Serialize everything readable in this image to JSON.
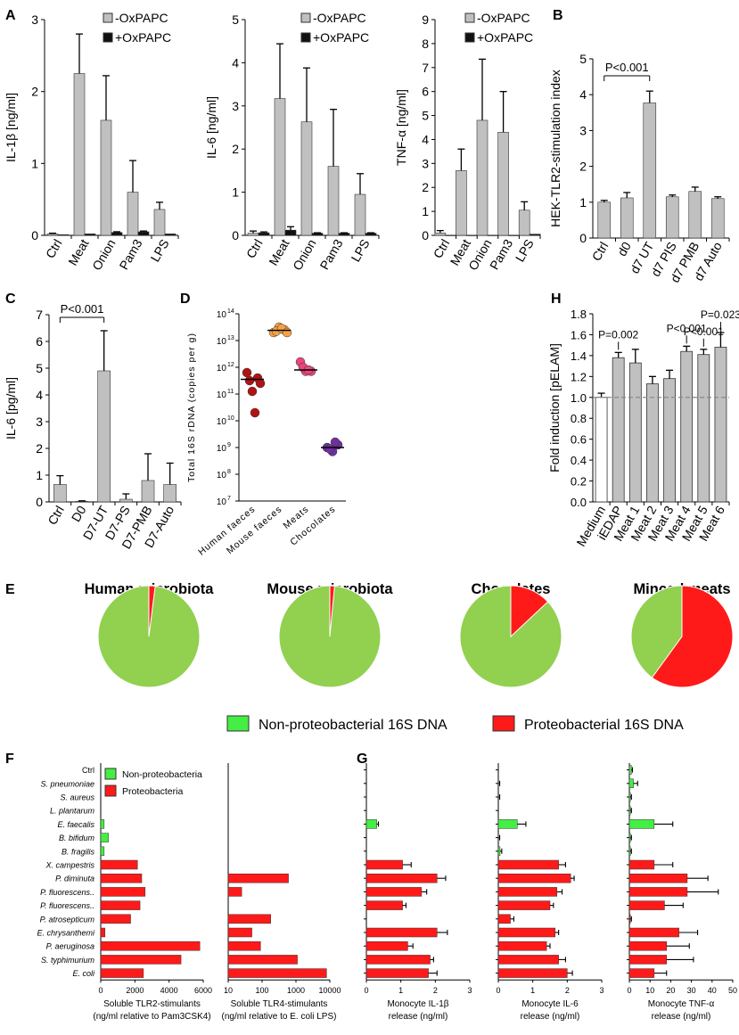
{
  "figure": {
    "panel_letters": [
      "A",
      "B",
      "C",
      "D",
      "E",
      "F",
      "G",
      "H"
    ]
  },
  "colors": {
    "gray_bar": "#c0c0c0",
    "black_bar": "#111111",
    "white_bar": "#ffffff",
    "green": "#92d050",
    "bright_green": "#44ee44",
    "red": "#ff1a1a",
    "orange": "#f5a142",
    "dark_red": "#b11212",
    "pink": "#e8467c",
    "purple": "#7030a0"
  },
  "chart_data": [
    {
      "id": "A1",
      "panel": "A",
      "type": "bar",
      "categories": [
        "Ctrl",
        "Meat",
        "Onion",
        "Pam3",
        "LPS"
      ],
      "series": [
        {
          "name": "-OxPAPC",
          "values": [
            0.02,
            2.25,
            1.6,
            0.6,
            0.36
          ],
          "errors": [
            0.01,
            0.55,
            0.62,
            0.44,
            0.1
          ]
        },
        {
          "name": "+OxPAPC",
          "values": [
            0.01,
            0.02,
            0.04,
            0.05,
            0.02
          ],
          "errors": [
            0.0,
            0.0,
            0.01,
            0.01,
            0.0
          ]
        }
      ],
      "ylabel": "IL-1β [ng/ml]",
      "ylim": [
        0,
        3
      ],
      "yticks": [
        0,
        1,
        2,
        3
      ]
    },
    {
      "id": "A2",
      "panel": "A",
      "type": "bar",
      "categories": [
        "Ctrl",
        "Meat",
        "Onion",
        "Pam3",
        "LPS"
      ],
      "series": [
        {
          "name": "-OxPAPC",
          "values": [
            0.05,
            3.17,
            2.63,
            1.6,
            0.95
          ],
          "errors": [
            0.05,
            1.27,
            1.25,
            1.32,
            0.48
          ]
        },
        {
          "name": "+OxPAPC",
          "values": [
            0.06,
            0.12,
            0.05,
            0.05,
            0.05
          ],
          "errors": [
            0.02,
            0.08,
            0.01,
            0.01,
            0.01
          ]
        }
      ],
      "ylabel": "IL-6 [ng/ml]",
      "ylim": [
        0,
        5
      ],
      "yticks": [
        0,
        1,
        2,
        3,
        4,
        5
      ]
    },
    {
      "id": "A3",
      "panel": "A",
      "type": "bar",
      "categories": [
        "Ctrl",
        "Meat",
        "Onion",
        "Pam3",
        "LPS"
      ],
      "series": [
        {
          "name": "-OxPAPC",
          "values": [
            0.1,
            2.7,
            4.8,
            4.3,
            1.05
          ],
          "errors": [
            0.1,
            0.9,
            2.55,
            1.7,
            0.35
          ]
        },
        {
          "name": "+OxPAPC",
          "values": [
            0.0,
            0.0,
            0.0,
            0.0,
            0.05
          ],
          "errors": [
            0,
            0,
            0,
            0,
            0
          ]
        }
      ],
      "ylabel": "TNF-α [ng/ml]",
      "ylim": [
        0,
        9
      ],
      "yticks": [
        0,
        1,
        2,
        3,
        4,
        5,
        6,
        7,
        8,
        9
      ]
    },
    {
      "id": "B",
      "panel": "B",
      "type": "bar",
      "categories": [
        "Ctrl",
        "d0",
        "d7 UT",
        "d7 PIS",
        "d7 PMB",
        "d7 Auto"
      ],
      "values": [
        1.0,
        1.12,
        3.77,
        1.15,
        1.3,
        1.1
      ],
      "errors": [
        0.05,
        0.15,
        0.33,
        0.05,
        0.12,
        0.05
      ],
      "ylabel": "HEK-TLR2-stimulation index",
      "ylim": [
        0,
        5
      ],
      "yticks": [
        0,
        1,
        2,
        3,
        4,
        5
      ],
      "annotation": "P<0.001"
    },
    {
      "id": "C",
      "panel": "C",
      "type": "bar",
      "categories": [
        "Ctrl",
        "D0",
        "D7-UT",
        "D7-PS",
        "D7-PMB",
        "D7-Auto"
      ],
      "values": [
        0.65,
        0.02,
        4.9,
        0.1,
        0.8,
        0.65
      ],
      "errors": [
        0.33,
        0.02,
        1.5,
        0.2,
        1.0,
        0.8
      ],
      "ylabel": "IL-6 [pg/ml]",
      "ylim": [
        0,
        7
      ],
      "yticks": [
        0,
        1,
        2,
        3,
        4,
        5,
        6,
        7
      ],
      "annotation": "P<0.001"
    },
    {
      "id": "D",
      "panel": "D",
      "type": "scatter",
      "categories": [
        "Human faeces",
        "Mouse faeces",
        "Meats",
        "Chocolates"
      ],
      "points": [
        [
          11.8,
          11.1,
          11.6,
          11.5,
          10.3,
          11.4
        ],
        [
          13.3,
          13.5,
          13.4,
          13.35,
          13.45,
          13.3
        ],
        [
          12.2,
          11.85,
          11.85,
          12.0,
          11.9
        ],
        [
          9.0,
          8.85,
          9.1,
          8.95,
          9.2
        ]
      ],
      "medians": [
        11.55,
        13.38,
        11.9,
        9.0
      ],
      "ylabel": "Total 16S rDNA (copies per g)",
      "ylim_log10": [
        7,
        14
      ],
      "yticks": [
        "10",
        "10",
        "10",
        "10",
        "10",
        "10",
        "10",
        "10"
      ],
      "yexps": [
        "7",
        "8",
        "9",
        "10",
        "11",
        "12",
        "13",
        "14"
      ]
    },
    {
      "id": "H",
      "panel": "H",
      "type": "bar",
      "categories": [
        "Medium",
        "iEDAP",
        "Meat 1",
        "Meat 2",
        "Meat 3",
        "Meat 4",
        "Meat 5",
        "Meat 6"
      ],
      "values": [
        1.0,
        1.38,
        1.33,
        1.13,
        1.18,
        1.44,
        1.41,
        1.48
      ],
      "errors": [
        0.04,
        0.05,
        0.13,
        0.07,
        0.08,
        0.05,
        0.05,
        0.14
      ],
      "ylabel": "Fold induction [pELAM]",
      "ylim": [
        0,
        1.8
      ],
      "yticks": [
        "0.0",
        "0.2",
        "0.4",
        "0.6",
        "0.8",
        "1.0",
        "1.2",
        "1.4",
        "1.6",
        "1.8"
      ],
      "reference_line": 1.0,
      "annotations": [
        {
          "category": "iEDAP",
          "text": "P=0.002"
        },
        {
          "category": "Meat 4",
          "text": "P<0.001"
        },
        {
          "category": "Meat 5",
          "text": "P<0.001"
        },
        {
          "category": "Meat 6",
          "text": "P=0.023"
        }
      ]
    },
    {
      "id": "E",
      "panel": "E",
      "type": "pie",
      "pies": [
        {
          "title": "Human microbiota",
          "proteobacterial_fraction": 0.02
        },
        {
          "title": "Mouse microbiota",
          "proteobacterial_fraction": 0.015
        },
        {
          "title": "Chocolates",
          "proteobacterial_fraction": 0.13
        },
        {
          "title": "Minced meats",
          "proteobacterial_fraction": 0.6
        }
      ],
      "legend": [
        "Non-proteobacterial 16S DNA",
        "Proteobacterial 16S DNA"
      ]
    },
    {
      "id": "F",
      "panel": "F",
      "type": "bar",
      "orientation": "horizontal",
      "organisms": [
        "Ctrl",
        "S. pneumoniae",
        "S. aureus",
        "L. plantarum",
        "E. faecalis",
        "B. bifidum",
        "B. fragilis",
        "X. campestris",
        "P. diminuta",
        "P. fluorescens..",
        "P. fluorescens..",
        "P. atrosepticum",
        "E. chrysanthemi",
        "P. aeruginosa",
        "S. typhimurium",
        "E. coli"
      ],
      "proteobacteria": [
        false,
        false,
        false,
        false,
        false,
        false,
        false,
        true,
        true,
        true,
        true,
        true,
        true,
        true,
        true,
        true
      ],
      "legend": [
        "Non-proteobacteria",
        "Proteobacteria"
      ],
      "subplots": [
        {
          "xlabel_lines": [
            "Soluble TLR2-stimulants",
            "(ng/ml relative to Pam3CSK4)"
          ],
          "xlim": [
            0,
            6000
          ],
          "xticks": [
            "0",
            "2000",
            "4000",
            "6000"
          ],
          "values": [
            0,
            0,
            0,
            0,
            200,
            450,
            200,
            2150,
            2400,
            2600,
            2300,
            1750,
            250,
            5800,
            4700,
            2500
          ]
        },
        {
          "xlabel_lines": [
            "Soluble TLR4-stimulants",
            "(ng/ml relative to E. coli LPS)"
          ],
          "xscale": "log",
          "xlim": [
            10,
            10000
          ],
          "xticks": [
            "10",
            "100",
            "1000",
            "10000"
          ],
          "values": [
            0,
            0,
            0,
            0,
            0,
            0,
            0,
            0,
            600,
            25,
            0,
            180,
            50,
            90,
            1100,
            8000
          ]
        }
      ]
    },
    {
      "id": "G",
      "panel": "G",
      "type": "bar",
      "orientation": "horizontal",
      "organisms": [
        "Ctrl",
        "S. pneumoniae",
        "S. aureus",
        "L. plantarum",
        "E. faecalis",
        "B. bifidum",
        "B. fragilis",
        "X. campestris",
        "P. diminuta",
        "P. fluorescens..",
        "P. fluorescens..",
        "P. atrosepticum",
        "E. chrysanthemi",
        "P. aeruginosa",
        "S. typhimurium",
        "E. coli"
      ],
      "subplots": [
        {
          "xlabel_lines": [
            "Monocyte IL-1β",
            "release (ng/ml)"
          ],
          "xlim": [
            0,
            3
          ],
          "xticks": [
            "0",
            "1",
            "2",
            "3"
          ],
          "values": [
            0,
            0,
            0,
            0,
            0.3,
            0,
            0,
            1.05,
            2.05,
            1.6,
            1.05,
            0,
            2.05,
            1.2,
            1.85,
            1.8
          ],
          "errors": [
            0,
            0,
            0,
            0,
            0.05,
            0,
            0,
            0.25,
            0.25,
            0.15,
            0.1,
            0,
            0.3,
            0.15,
            0.1,
            0.25
          ]
        },
        {
          "xlabel_lines": [
            "Monocyte IL-6",
            "release (ng/ml)"
          ],
          "xlim": [
            0,
            3
          ],
          "xticks": [
            "0",
            "1",
            "2",
            "3"
          ],
          "values": [
            0,
            0.02,
            0.02,
            0,
            0.55,
            0.02,
            0.05,
            1.75,
            2.1,
            1.7,
            1.5,
            0.35,
            1.65,
            1.4,
            1.75,
            2.0
          ],
          "errors": [
            0,
            0.02,
            0.02,
            0,
            0.25,
            0.02,
            0.05,
            0.2,
            0.1,
            0.15,
            0.1,
            0.1,
            0.1,
            0.1,
            0.2,
            0.15
          ]
        },
        {
          "xlabel_lines": [
            "Monocyte TNF-α",
            "release (ng/ml)"
          ],
          "xlim": [
            0,
            50
          ],
          "xticks": [
            "0",
            "10",
            "20",
            "30",
            "40",
            "50"
          ],
          "values": [
            1,
            2,
            0.5,
            0.5,
            12,
            0.5,
            0.5,
            12,
            28,
            28,
            17,
            0.5,
            24,
            18,
            18,
            12
          ],
          "errors": [
            0.5,
            2,
            0.5,
            0.5,
            9,
            0.5,
            0.5,
            9,
            10,
            15,
            9,
            0.5,
            9,
            11,
            13,
            6
          ]
        }
      ]
    }
  ]
}
